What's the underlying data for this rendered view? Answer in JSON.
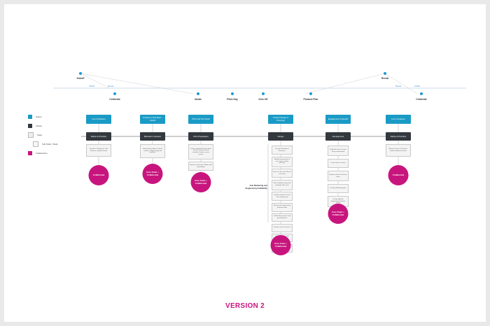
{
  "timeline": {
    "milestones": [
      {
        "label": "Kickoff"
      },
      {
        "label": "Reveal"
      }
    ],
    "small_labels": [
      "Kickoff",
      "Reveal",
      "Reveal",
      "Kickoff"
    ],
    "phases": [
      {
        "label": "Celebrate"
      },
      {
        "label": "Ideate"
      },
      {
        "label": "Pitch Day"
      },
      {
        "label": "Kick Off"
      },
      {
        "label": "Product Plan"
      },
      {
        "label": "Celebrate"
      }
    ]
  },
  "legend": [
    {
      "label": "Output",
      "color": "#1a9bc6"
    },
    {
      "label": "Activity",
      "color": "#34393f"
    },
    {
      "label": "Tasks",
      "color": "#eeeeee"
    },
    {
      "label": "Sub-Tasks / Tasks",
      "color": "#f7f7f7"
    },
    {
      "label": "Collaboration",
      "color": "#c8157e"
    }
  ],
  "columns": [
    {
      "output": "List of Features",
      "activity": "Refine & Prioritize",
      "notes": [
        "Tag ideas & Requests; Sort Features; Identify Trends"
      ],
      "collab": "Collaborate"
    },
    {
      "output": "Product & Tech Brief - Kickoff",
      "activity": "Brainstorm Session",
      "notes": [
        "Understand problem & ideate solutions; Walk through full workflow"
      ],
      "collab": "Core Team + Collaborate"
    },
    {
      "output": "Pitch and Tech Deck",
      "activity": "Pitch Preparation",
      "notes": [
        "Create storyboard & pitch deck; Discuss resources and schedule; Define success metrics",
        "Review resourcing; Validate with stakeholders"
      ],
      "collab": "Core Team + Collaborate"
    },
    {
      "output": "Product Design & Prototype",
      "activity": "Design",
      "notes": [
        "Design Workshop & Research",
        "Identify requirements & user stories; define journeys",
        "Focus on key user flows & core tasks",
        "Run Usability testing and prototype with users",
        "Finalize designs & hand off to engineering",
        "Review with engineering; Estimate effort",
        "Define design specs and documentation",
        "Finalize assets for launch",
        "Validate design with stakeholders",
        "Design QA & Engineering support"
      ],
      "collab": "Core Team + Collaborate"
    },
    {
      "output": "Engagement & Results",
      "activity": "Development",
      "notes": [
        "Establish team & scope; Setup environment",
        "Launch plan & review",
        "Prepare release & release notes",
        "Develop Marketing plan",
        "Design QA with engineering; Release review"
      ],
      "collab": "Core Team + Collaborate"
    },
    {
      "output": "List of Features",
      "activity": "Refine & Prioritize",
      "notes": [
        "Review metrics & outcome; Gather feedback & ideas"
      ],
      "collab": "Collaborate"
    }
  ],
  "side_label": "Join Marketing and Engineering Availability",
  "footer": {
    "version": "VERSION 2"
  }
}
